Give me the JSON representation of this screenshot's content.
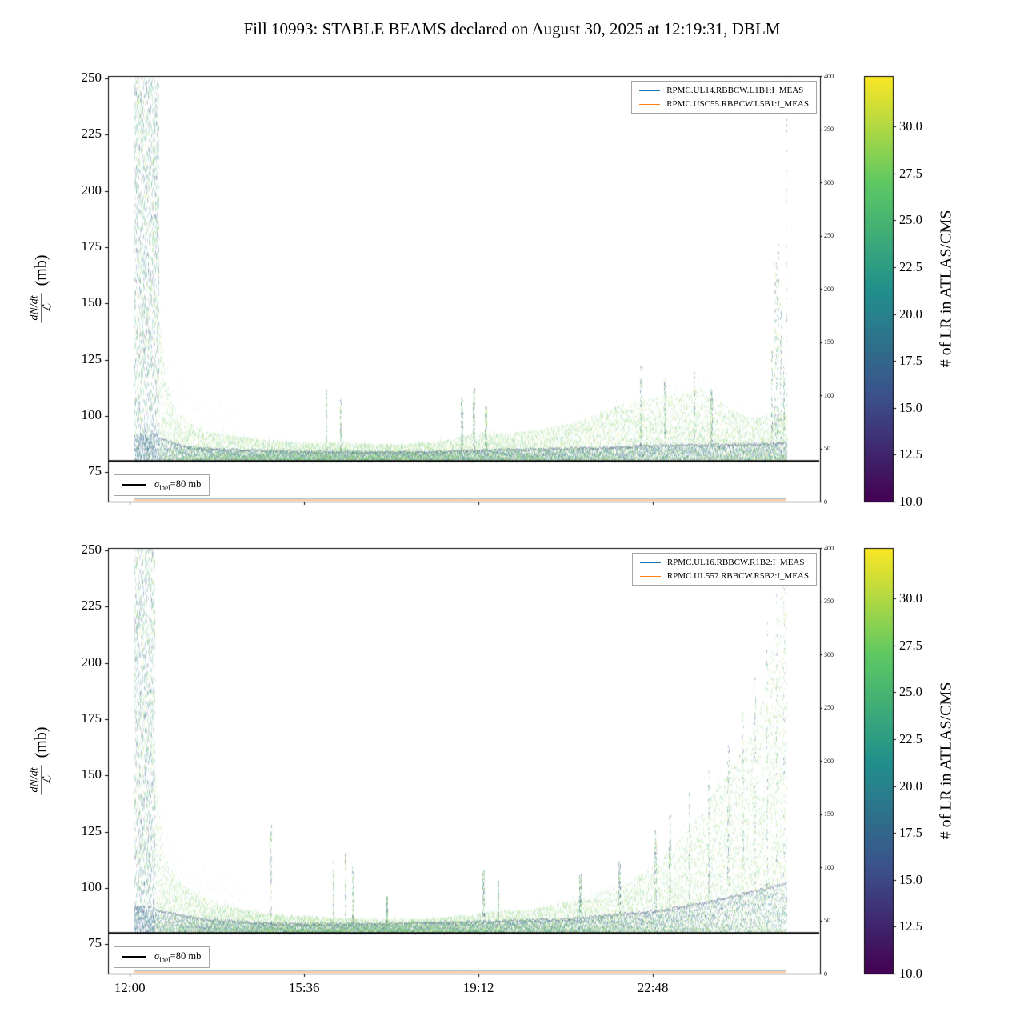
{
  "figure": {
    "title": "Fill 10993: STABLE BEAMS declared on August 30, 2025 at 12:19:31, DBLM",
    "ylabel": {
      "num": "dN/dt",
      "den": "ℒ",
      "unit": "(mb)"
    },
    "colorbar_label": "# of LR in ATLAS/CMS"
  },
  "chart_data": [
    {
      "type": "scatter",
      "subplot": "top",
      "title": "",
      "xlabel": "",
      "ylabel": "dN/dt / ℒ (mb)",
      "xlim_hours": [
        11.55,
        26.25
      ],
      "ylim": [
        62,
        251
      ],
      "y_ticks": [
        75,
        100,
        125,
        150,
        175,
        200,
        225,
        250
      ],
      "x_ticks": [
        {
          "hour": 12.0,
          "label": "12:00"
        },
        {
          "hour": 15.6,
          "label": "15:36"
        },
        {
          "hour": 19.2,
          "label": "19:12"
        },
        {
          "hour": 22.8,
          "label": "22:48"
        }
      ],
      "show_x_labels": false,
      "grid": false,
      "right_axis": {
        "lim": [
          0,
          400
        ],
        "ticks": [
          0,
          50,
          100,
          150,
          200,
          250,
          300,
          350,
          400
        ]
      },
      "legend": [
        "RPMC.UL14.RBBCW.L1B1:I_MEAS",
        "RPMC.USC55.RBBCW.L5B1:I_MEAS"
      ],
      "legend_colors": [
        "#1f77b4",
        "#ff7f0e"
      ],
      "legend_position": "upper right",
      "sigma": {
        "sym": "σ",
        "sub": "inel",
        "rest": "=80 mb",
        "value_mb": 80
      },
      "colorbar": {
        "label": "# of LR in ATLAS/CMS",
        "lim": [
          10,
          32.7
        ],
        "ticks": [
          10,
          12.5,
          15,
          17.5,
          20,
          22.5,
          25,
          27.5,
          30
        ],
        "colormap": "viridis"
      },
      "baseline_mb": 80,
      "data_start_hour": 12.09,
      "start_spike": {
        "t0": 12.09,
        "t1": 12.6,
        "top_mb": 251
      },
      "envelope_top_mb": [
        [
          12.6,
          150
        ],
        [
          12.72,
          118
        ],
        [
          12.9,
          104
        ],
        [
          13.2,
          97
        ],
        [
          13.6,
          93
        ],
        [
          14.5,
          90
        ],
        [
          15.5,
          88
        ],
        [
          16.5,
          88
        ],
        [
          17.5,
          87
        ],
        [
          18.5,
          89
        ],
        [
          19.2,
          93
        ],
        [
          19.8,
          92
        ],
        [
          20.5,
          94
        ],
        [
          21.2,
          97
        ],
        [
          21.8,
          102
        ],
        [
          22.3,
          106
        ],
        [
          22.8,
          108
        ],
        [
          23.3,
          110
        ],
        [
          23.8,
          112
        ],
        [
          24.2,
          106
        ],
        [
          24.6,
          101
        ],
        [
          24.9,
          99
        ],
        [
          25.2,
          100
        ],
        [
          25.55,
          102
        ]
      ],
      "dark_band_top_mb": [
        [
          12.6,
          90
        ],
        [
          13.2,
          86
        ],
        [
          14,
          85
        ],
        [
          16,
          84
        ],
        [
          18,
          84
        ],
        [
          20,
          85
        ],
        [
          22,
          86
        ],
        [
          23,
          87
        ],
        [
          24,
          87
        ],
        [
          25.55,
          88
        ]
      ],
      "spikes": [
        [
          16.05,
          112
        ],
        [
          16.35,
          107
        ],
        [
          18.85,
          108
        ],
        [
          19.1,
          112
        ],
        [
          19.35,
          104
        ],
        [
          22.55,
          122
        ],
        [
          23.05,
          117
        ],
        [
          23.65,
          120
        ],
        [
          24.0,
          112
        ],
        [
          25.25,
          130
        ],
        [
          25.32,
          168
        ],
        [
          25.38,
          180
        ],
        [
          25.44,
          150
        ],
        [
          25.5,
          122
        ],
        [
          25.55,
          251
        ]
      ]
    },
    {
      "type": "scatter",
      "subplot": "bottom",
      "title": "",
      "xlabel": "",
      "ylabel": "dN/dt / ℒ (mb)",
      "xlim_hours": [
        11.55,
        26.25
      ],
      "ylim": [
        62,
        251
      ],
      "y_ticks": [
        75,
        100,
        125,
        150,
        175,
        200,
        225,
        250
      ],
      "x_ticks": [
        {
          "hour": 12.0,
          "label": "12:00"
        },
        {
          "hour": 15.6,
          "label": "15:36"
        },
        {
          "hour": 19.2,
          "label": "19:12"
        },
        {
          "hour": 22.8,
          "label": "22:48"
        }
      ],
      "show_x_labels": true,
      "grid": false,
      "right_axis": {
        "lim": [
          0,
          400
        ],
        "ticks": [
          0,
          50,
          100,
          150,
          200,
          250,
          300,
          350,
          400
        ]
      },
      "legend": [
        "RPMC.UL16.RBBCW.R1B2:I_MEAS",
        "RPMC.UL557.RBBCW.R5B2:I_MEAS"
      ],
      "legend_colors": [
        "#1f77b4",
        "#ff7f0e"
      ],
      "legend_position": "upper right",
      "sigma": {
        "sym": "σ",
        "sub": "inel",
        "rest": "=80 mb",
        "value_mb": 80
      },
      "colorbar": {
        "label": "# of LR in ATLAS/CMS",
        "lim": [
          10,
          32.7
        ],
        "ticks": [
          10,
          12.5,
          15,
          17.5,
          20,
          22.5,
          25,
          27.5,
          30
        ],
        "colormap": "viridis"
      },
      "baseline_mb": 80,
      "data_start_hour": 12.09,
      "start_spike": {
        "t0": 12.09,
        "t1": 12.52,
        "top_mb": 251
      },
      "envelope_top_mb": [
        [
          12.52,
          150
        ],
        [
          12.7,
          115
        ],
        [
          12.95,
          104
        ],
        [
          13.3,
          98
        ],
        [
          13.7,
          94
        ],
        [
          14.2,
          91
        ],
        [
          15,
          88
        ],
        [
          16,
          87
        ],
        [
          17,
          86
        ],
        [
          18,
          86
        ],
        [
          19,
          88
        ],
        [
          19.6,
          90
        ],
        [
          20.2,
          90
        ],
        [
          20.8,
          93
        ],
        [
          21.4,
          96
        ],
        [
          22.0,
          100
        ],
        [
          22.4,
          104
        ],
        [
          22.8,
          110
        ],
        [
          23.1,
          116
        ],
        [
          23.4,
          123
        ],
        [
          23.7,
          131
        ],
        [
          24.0,
          141
        ],
        [
          24.4,
          153
        ],
        [
          24.8,
          168
        ],
        [
          25.0,
          180
        ],
        [
          25.2,
          200
        ],
        [
          25.4,
          225
        ],
        [
          25.55,
          245
        ]
      ],
      "dark_band_top_mb": [
        [
          12.52,
          90
        ],
        [
          13.5,
          86
        ],
        [
          15,
          84
        ],
        [
          17,
          84
        ],
        [
          19,
          85
        ],
        [
          21,
          86
        ],
        [
          22,
          88
        ],
        [
          23,
          90
        ],
        [
          24,
          94
        ],
        [
          24.8,
          98
        ],
        [
          25.55,
          102
        ]
      ],
      "spikes": [
        [
          14.9,
          128
        ],
        [
          16.2,
          112
        ],
        [
          16.45,
          116
        ],
        [
          16.6,
          110
        ],
        [
          17.3,
          96
        ],
        [
          19.3,
          108
        ],
        [
          19.6,
          103
        ],
        [
          21.3,
          106
        ],
        [
          22.1,
          112
        ],
        [
          22.85,
          126
        ],
        [
          23.15,
          132
        ],
        [
          23.55,
          142
        ],
        [
          23.95,
          152
        ],
        [
          24.35,
          164
        ],
        [
          24.65,
          178
        ],
        [
          24.9,
          195
        ],
        [
          25.15,
          218
        ],
        [
          25.35,
          232
        ],
        [
          25.5,
          250
        ]
      ]
    }
  ]
}
